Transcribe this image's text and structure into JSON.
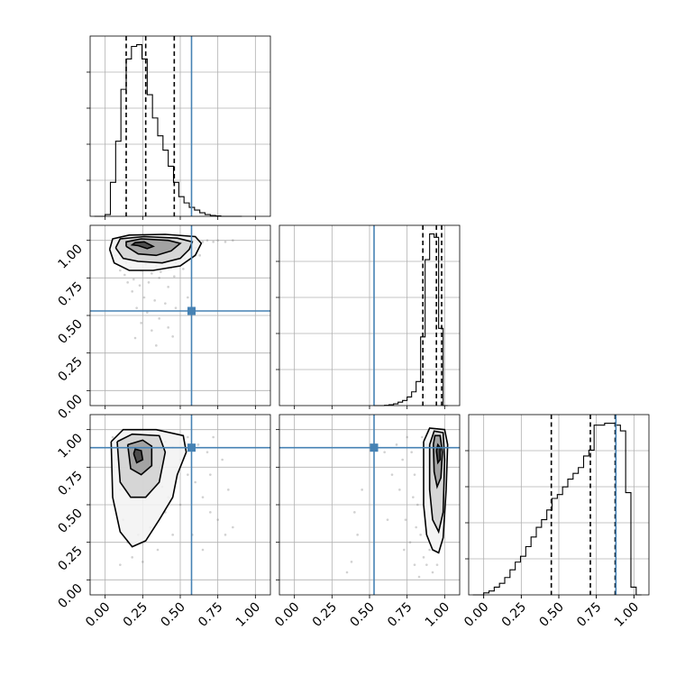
{
  "chart_data": [
    {
      "type": "histogram",
      "panel": "diag-0",
      "xlim": [
        -0.1,
        1.1
      ],
      "grid": true,
      "bins_start": [
        0.0,
        0.035,
        0.07,
        0.105,
        0.14,
        0.175,
        0.21,
        0.245,
        0.28,
        0.315,
        0.35,
        0.385,
        0.42,
        0.455,
        0.49,
        0.525,
        0.56,
        0.595,
        0.63,
        0.665,
        0.7,
        0.735,
        0.77,
        0.805,
        0.84,
        0.875
      ],
      "counts": [
        0.01,
        0.19,
        0.42,
        0.71,
        0.88,
        0.95,
        0.96,
        0.88,
        0.68,
        0.55,
        0.45,
        0.37,
        0.28,
        0.19,
        0.11,
        0.075,
        0.05,
        0.035,
        0.02,
        0.01,
        0.005,
        0.002,
        0.0,
        0.0,
        0.0,
        0.0
      ],
      "quantiles": [
        0.14,
        0.27,
        0.46
      ],
      "truth": 0.575
    },
    {
      "type": "histogram",
      "panel": "diag-1",
      "xlim": [
        -0.1,
        1.1
      ],
      "grid": true,
      "bins_start": [
        0.6,
        0.63,
        0.66,
        0.69,
        0.72,
        0.75,
        0.78,
        0.81,
        0.84,
        0.87,
        0.9,
        0.93,
        0.96,
        0.99
      ],
      "counts": [
        0.002,
        0.005,
        0.01,
        0.02,
        0.03,
        0.05,
        0.08,
        0.14,
        0.4,
        0.85,
        1.0,
        0.98,
        0.45,
        0.0
      ],
      "quantiles": [
        0.855,
        0.945,
        0.98
      ],
      "truth": 0.53
    },
    {
      "type": "histogram",
      "panel": "diag-2",
      "xlim": [
        -0.1,
        1.1
      ],
      "grid": true,
      "bins_start": [
        0.0,
        0.035,
        0.07,
        0.105,
        0.14,
        0.175,
        0.21,
        0.245,
        0.28,
        0.315,
        0.35,
        0.385,
        0.42,
        0.455,
        0.49,
        0.525,
        0.56,
        0.595,
        0.63,
        0.665,
        0.7,
        0.735,
        0.77,
        0.805,
        0.84,
        0.875,
        0.91,
        0.945,
        0.98,
        1.015
      ],
      "counts": [
        0.01,
        0.02,
        0.04,
        0.06,
        0.09,
        0.13,
        0.17,
        0.2,
        0.25,
        0.3,
        0.35,
        0.39,
        0.44,
        0.5,
        0.52,
        0.56,
        0.6,
        0.63,
        0.66,
        0.72,
        0.75,
        0.88,
        0.88,
        0.89,
        0.89,
        0.88,
        0.85,
        0.53,
        0.04,
        0.0
      ],
      "quantiles": [
        0.45,
        0.71,
        0.875
      ],
      "truth": 0.88,
      "xticks": [
        "0.00",
        "0.25",
        "0.50",
        "0.75",
        "1.00"
      ]
    },
    {
      "type": "scatter-density",
      "panel": "row1-col0",
      "xlim": [
        -0.1,
        1.1
      ],
      "ylim": [
        -0.1,
        1.1
      ],
      "grid": true,
      "yticks": [
        "0.00",
        "0.25",
        "0.50",
        "0.75",
        "1.00"
      ],
      "truth": [
        0.575,
        0.53
      ],
      "points": [
        [
          0.08,
          0.97
        ],
        [
          0.12,
          0.94
        ],
        [
          0.15,
          0.98
        ],
        [
          0.18,
          0.93
        ],
        [
          0.2,
          0.96
        ],
        [
          0.22,
          0.95
        ],
        [
          0.25,
          0.97
        ],
        [
          0.28,
          0.94
        ],
        [
          0.3,
          0.98
        ],
        [
          0.33,
          0.96
        ],
        [
          0.35,
          0.93
        ],
        [
          0.38,
          0.97
        ],
        [
          0.42,
          0.95
        ],
        [
          0.45,
          0.98
        ],
        [
          0.48,
          0.94
        ],
        [
          0.52,
          0.97
        ],
        [
          0.55,
          0.99
        ],
        [
          0.58,
          0.98
        ],
        [
          0.62,
          0.99
        ],
        [
          0.65,
          0.99
        ],
        [
          0.68,
          1.0
        ],
        [
          0.72,
          0.99
        ],
        [
          0.75,
          1.0
        ],
        [
          0.8,
          0.99
        ],
        [
          0.85,
          1.0
        ],
        [
          0.1,
          0.88
        ],
        [
          0.14,
          0.85
        ],
        [
          0.17,
          0.82
        ],
        [
          0.21,
          0.86
        ],
        [
          0.24,
          0.8
        ],
        [
          0.27,
          0.84
        ],
        [
          0.31,
          0.78
        ],
        [
          0.34,
          0.83
        ],
        [
          0.37,
          0.79
        ],
        [
          0.4,
          0.87
        ],
        [
          0.44,
          0.82
        ],
        [
          0.47,
          0.85
        ],
        [
          0.5,
          0.9
        ],
        [
          0.53,
          0.88
        ],
        [
          0.57,
          0.92
        ],
        [
          0.13,
          0.77
        ],
        [
          0.19,
          0.74
        ],
        [
          0.23,
          0.7
        ],
        [
          0.29,
          0.72
        ],
        [
          0.36,
          0.75
        ],
        [
          0.42,
          0.69
        ],
        [
          0.18,
          0.66
        ],
        [
          0.26,
          0.62
        ],
        [
          0.33,
          0.6
        ],
        [
          0.21,
          0.55
        ],
        [
          0.4,
          0.58
        ],
        [
          0.15,
          0.72
        ],
        [
          0.1,
          0.8
        ],
        [
          0.07,
          0.9
        ],
        [
          0.6,
          0.95
        ],
        [
          0.63,
          0.9
        ],
        [
          0.46,
          0.76
        ],
        [
          0.52,
          0.81
        ],
        [
          0.28,
          0.52
        ],
        [
          0.36,
          0.48
        ],
        [
          0.24,
          0.45
        ],
        [
          0.31,
          0.4
        ],
        [
          0.42,
          0.42
        ],
        [
          0.47,
          0.55
        ],
        [
          0.2,
          0.35
        ],
        [
          0.34,
          0.3
        ],
        [
          0.45,
          0.36
        ],
        [
          0.55,
          0.62
        ]
      ],
      "contours": [
        [
          [
            0.22,
            0.965
          ],
          [
            0.28,
            0.945
          ],
          [
            0.32,
            0.96
          ],
          [
            0.26,
            0.99
          ],
          [
            0.2,
            0.985
          ],
          [
            0.18,
            0.97
          ],
          [
            0.22,
            0.965
          ]
        ],
        [
          [
            0.14,
            0.96
          ],
          [
            0.22,
            0.91
          ],
          [
            0.34,
            0.9
          ],
          [
            0.44,
            0.93
          ],
          [
            0.5,
            0.98
          ],
          [
            0.42,
            1.0
          ],
          [
            0.24,
            1.01
          ],
          [
            0.14,
            0.99
          ],
          [
            0.14,
            0.96
          ]
        ],
        [
          [
            0.07,
            0.95
          ],
          [
            0.12,
            0.88
          ],
          [
            0.22,
            0.86
          ],
          [
            0.38,
            0.85
          ],
          [
            0.5,
            0.88
          ],
          [
            0.56,
            0.94
          ],
          [
            0.58,
            0.99
          ],
          [
            0.48,
            1.015
          ],
          [
            0.26,
            1.025
          ],
          [
            0.1,
            1.01
          ],
          [
            0.07,
            0.95
          ]
        ],
        [
          [
            0.03,
            0.94
          ],
          [
            0.06,
            0.85
          ],
          [
            0.16,
            0.8
          ],
          [
            0.32,
            0.8
          ],
          [
            0.5,
            0.83
          ],
          [
            0.6,
            0.9
          ],
          [
            0.64,
            0.98
          ],
          [
            0.6,
            1.025
          ],
          [
            0.4,
            1.04
          ],
          [
            0.16,
            1.035
          ],
          [
            0.05,
            1.01
          ],
          [
            0.03,
            0.94
          ]
        ]
      ]
    },
    {
      "type": "scatter-density",
      "panel": "row2-col0",
      "xlim": [
        -0.1,
        1.1
      ],
      "ylim": [
        -0.1,
        1.1
      ],
      "grid": true,
      "yticks": [
        "0.00",
        "0.25",
        "0.50",
        "0.75",
        "1.00"
      ],
      "xticks": [
        "0.00",
        "0.25",
        "0.50",
        "0.75",
        "1.00"
      ],
      "truth": [
        0.575,
        0.88
      ],
      "points": [
        [
          0.05,
          0.95
        ],
        [
          0.08,
          0.8
        ],
        [
          0.1,
          0.6
        ],
        [
          0.12,
          0.4
        ],
        [
          0.15,
          0.25
        ],
        [
          0.18,
          0.15
        ],
        [
          0.1,
          0.1
        ],
        [
          0.2,
          0.95
        ],
        [
          0.25,
          0.9
        ],
        [
          0.3,
          0.85
        ],
        [
          0.35,
          0.95
        ],
        [
          0.4,
          0.92
        ],
        [
          0.45,
          0.88
        ],
        [
          0.5,
          0.8
        ],
        [
          0.55,
          0.7
        ],
        [
          0.6,
          0.65
        ],
        [
          0.65,
          0.55
        ],
        [
          0.7,
          0.45
        ],
        [
          0.75,
          0.4
        ],
        [
          0.8,
          0.3
        ],
        [
          0.85,
          0.35
        ],
        [
          0.62,
          0.9
        ],
        [
          0.68,
          0.85
        ],
        [
          0.72,
          0.95
        ],
        [
          0.78,
          0.8
        ],
        [
          0.5,
          0.5
        ],
        [
          0.45,
          0.3
        ],
        [
          0.35,
          0.2
        ],
        [
          0.25,
          0.12
        ],
        [
          0.3,
          0.35
        ],
        [
          0.4,
          0.45
        ],
        [
          0.2,
          0.55
        ],
        [
          0.15,
          0.7
        ],
        [
          0.58,
          0.3
        ],
        [
          0.65,
          0.2
        ],
        [
          0.28,
          0.6
        ],
        [
          0.38,
          0.62
        ],
        [
          0.48,
          0.7
        ],
        [
          0.22,
          0.3
        ],
        [
          0.12,
          0.82
        ],
        [
          0.06,
          0.5
        ],
        [
          0.7,
          0.7
        ],
        [
          0.82,
          0.6
        ],
        [
          0.55,
          0.95
        ],
        [
          0.42,
          0.55
        ]
      ],
      "contours": [
        [
          [
            0.19,
            0.84
          ],
          [
            0.21,
            0.78
          ],
          [
            0.25,
            0.8
          ],
          [
            0.24,
            0.86
          ],
          [
            0.2,
            0.87
          ],
          [
            0.19,
            0.84
          ]
        ],
        [
          [
            0.15,
            0.9
          ],
          [
            0.17,
            0.74
          ],
          [
            0.24,
            0.7
          ],
          [
            0.31,
            0.76
          ],
          [
            0.31,
            0.89
          ],
          [
            0.25,
            0.93
          ],
          [
            0.15,
            0.9
          ]
        ],
        [
          [
            0.08,
            0.92
          ],
          [
            0.1,
            0.65
          ],
          [
            0.17,
            0.55
          ],
          [
            0.27,
            0.55
          ],
          [
            0.36,
            0.65
          ],
          [
            0.4,
            0.85
          ],
          [
            0.36,
            0.96
          ],
          [
            0.18,
            0.97
          ],
          [
            0.08,
            0.92
          ]
        ],
        [
          [
            0.04,
            0.92
          ],
          [
            0.05,
            0.55
          ],
          [
            0.1,
            0.32
          ],
          [
            0.18,
            0.22
          ],
          [
            0.27,
            0.26
          ],
          [
            0.36,
            0.4
          ],
          [
            0.45,
            0.55
          ],
          [
            0.48,
            0.7
          ],
          [
            0.54,
            0.85
          ],
          [
            0.52,
            0.96
          ],
          [
            0.34,
            1.0
          ],
          [
            0.12,
            1.0
          ],
          [
            0.04,
            0.92
          ]
        ]
      ]
    },
    {
      "type": "scatter-density",
      "panel": "row2-col1",
      "xlim": [
        -0.1,
        1.1
      ],
      "ylim": [
        -0.1,
        1.1
      ],
      "grid": true,
      "xticks": [
        "0.00",
        "0.25",
        "0.50",
        "0.75",
        "1.00"
      ],
      "truth": [
        0.53,
        0.88
      ],
      "points": [
        [
          0.75,
          0.95
        ],
        [
          0.78,
          0.85
        ],
        [
          0.8,
          0.7
        ],
        [
          0.82,
          0.5
        ],
        [
          0.84,
          0.3
        ],
        [
          0.86,
          0.15
        ],
        [
          0.88,
          0.1
        ],
        [
          0.9,
          0.2
        ],
        [
          0.92,
          0.05
        ],
        [
          0.95,
          0.1
        ],
        [
          0.97,
          0.25
        ],
        [
          0.99,
          0.4
        ],
        [
          0.72,
          0.8
        ],
        [
          0.7,
          0.6
        ],
        [
          0.74,
          0.4
        ],
        [
          0.77,
          0.25
        ],
        [
          0.8,
          0.1
        ],
        [
          0.85,
          0.95
        ],
        [
          0.88,
          0.9
        ],
        [
          0.9,
          0.98
        ],
        [
          0.93,
          0.95
        ],
        [
          0.96,
          0.98
        ],
        [
          0.99,
          0.92
        ],
        [
          1.0,
          0.75
        ],
        [
          0.98,
          0.6
        ],
        [
          0.68,
          0.9
        ],
        [
          0.73,
          0.2
        ],
        [
          0.83,
          0.02
        ],
        [
          0.4,
          0.45
        ],
        [
          0.42,
          0.3
        ],
        [
          0.38,
          0.12
        ],
        [
          0.35,
          0.05
        ],
        [
          0.45,
          0.6
        ],
        [
          0.6,
          0.85
        ],
        [
          0.65,
          0.7
        ],
        [
          0.62,
          0.4
        ],
        [
          0.79,
          0.55
        ],
        [
          0.87,
          0.45
        ],
        [
          0.81,
          0.35
        ]
      ],
      "contours": [
        [
          [
            0.945,
            0.86
          ],
          [
            0.955,
            0.78
          ],
          [
            0.97,
            0.8
          ],
          [
            0.97,
            0.88
          ],
          [
            0.955,
            0.9
          ],
          [
            0.945,
            0.86
          ]
        ],
        [
          [
            0.925,
            0.9
          ],
          [
            0.93,
            0.72
          ],
          [
            0.95,
            0.62
          ],
          [
            0.975,
            0.68
          ],
          [
            0.985,
            0.85
          ],
          [
            0.97,
            0.96
          ],
          [
            0.935,
            0.96
          ],
          [
            0.925,
            0.9
          ]
        ],
        [
          [
            0.9,
            0.9
          ],
          [
            0.9,
            0.6
          ],
          [
            0.92,
            0.4
          ],
          [
            0.96,
            0.32
          ],
          [
            0.99,
            0.45
          ],
          [
            1.0,
            0.8
          ],
          [
            0.99,
            0.98
          ],
          [
            0.93,
            0.99
          ],
          [
            0.9,
            0.9
          ]
        ],
        [
          [
            0.86,
            0.92
          ],
          [
            0.86,
            0.5
          ],
          [
            0.88,
            0.3
          ],
          [
            0.92,
            0.2
          ],
          [
            0.96,
            0.18
          ],
          [
            0.99,
            0.28
          ],
          [
            1.01,
            0.6
          ],
          [
            1.02,
            0.9
          ],
          [
            1.0,
            1.0
          ],
          [
            0.9,
            1.01
          ],
          [
            0.86,
            0.92
          ]
        ]
      ]
    }
  ]
}
